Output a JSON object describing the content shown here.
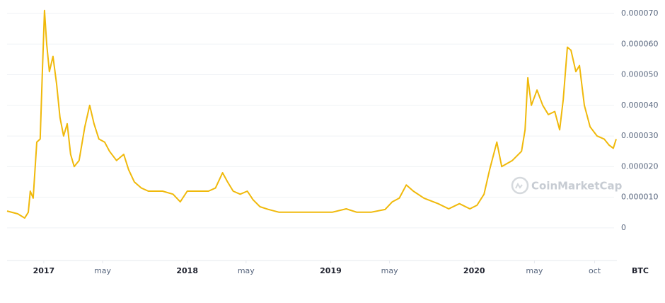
{
  "chart_data": {
    "type": "line",
    "color": "#f0b90b",
    "unit_label": "BTC",
    "watermark": "CoinMarketCap",
    "grid": true,
    "xlim": [
      2016.744,
      2020.995
    ],
    "ylim": [
      -1.02e-05,
      7.44e-05
    ],
    "xticks": [
      {
        "value": 2017,
        "label": "2017"
      },
      {
        "value": 2017.41,
        "label": "may"
      },
      {
        "value": 2018,
        "label": "2018"
      },
      {
        "value": 2018.41,
        "label": "may"
      },
      {
        "value": 2019,
        "label": "2019"
      },
      {
        "value": 2019.41,
        "label": "may"
      },
      {
        "value": 2020,
        "label": "2020"
      },
      {
        "value": 2020.42,
        "label": "may"
      },
      {
        "value": 2020.84,
        "label": "oct"
      }
    ],
    "yticks": [
      0,
      {
        "value": 1e-05,
        "label": "0.000010"
      },
      {
        "value": 2e-05,
        "label": "0.000020"
      },
      {
        "value": 3e-05,
        "label": "0.000030"
      },
      {
        "value": 4e-05,
        "label": "0.000040"
      },
      {
        "value": 5e-05,
        "label": "0.000050"
      },
      {
        "value": 6e-05,
        "label": "0.000060"
      },
      {
        "value": 7e-05,
        "label": "0.000070"
      }
    ],
    "x": [
      2016.744,
      2016.818,
      2016.867,
      2016.892,
      2016.906,
      2016.926,
      2016.951,
      2016.975,
      2016.99,
      2017.005,
      2017.02,
      2017.039,
      2017.064,
      2017.089,
      2017.113,
      2017.138,
      2017.163,
      2017.187,
      2017.212,
      2017.246,
      2017.286,
      2017.32,
      2017.35,
      2017.384,
      2017.424,
      2017.458,
      2017.507,
      2017.557,
      2017.591,
      2017.631,
      2017.68,
      2017.729,
      2017.828,
      2017.901,
      2017.951,
      2018.0,
      2018.074,
      2018.148,
      2018.197,
      2018.246,
      2018.281,
      2018.32,
      2018.369,
      2018.419,
      2018.458,
      2018.507,
      2018.567,
      2018.64,
      2018.764,
      2018.887,
      2019.01,
      2019.108,
      2019.182,
      2019.281,
      2019.379,
      2019.429,
      2019.478,
      2019.527,
      2019.576,
      2019.65,
      2019.749,
      2019.823,
      2019.897,
      2019.97,
      2020.02,
      2020.069,
      2020.108,
      2020.158,
      2020.192,
      2020.266,
      2020.33,
      2020.355,
      2020.374,
      2020.399,
      2020.438,
      2020.478,
      2020.517,
      2020.562,
      2020.596,
      2020.621,
      2020.65,
      2020.675,
      2020.709,
      2020.734,
      2020.768,
      2020.808,
      2020.857,
      2020.906,
      2020.941,
      2020.97,
      2020.99
    ],
    "values": [
      5.5e-06,
      4.6e-06,
      3.2e-06,
      5.1e-06,
      1.2e-05,
      9.7e-06,
      2.8e-05,
      2.9e-05,
      5.1e-05,
      7.1e-05,
      6e-05,
      5.1e-05,
      5.6e-05,
      4.7e-05,
      3.6e-05,
      3e-05,
      3.4e-05,
      2.4e-05,
      2e-05,
      2.2e-05,
      3.3e-05,
      4e-05,
      3.4e-05,
      2.9e-05,
      2.8e-05,
      2.5e-05,
      2.2e-05,
      2.4e-05,
      1.9e-05,
      1.5e-05,
      1.3e-05,
      1.2e-05,
      1.2e-05,
      1.1e-05,
      8.5e-06,
      1.2e-05,
      1.2e-05,
      1.2e-05,
      1.3e-05,
      1.8e-05,
      1.5e-05,
      1.2e-05,
      1.1e-05,
      1.2e-05,
      9.2e-06,
      6.9e-06,
      6e-06,
      5.1e-06,
      5.1e-06,
      5.1e-06,
      5.1e-06,
      6.2e-06,
      5.1e-06,
      5.1e-06,
      6e-06,
      8.5e-06,
      9.7e-06,
      1.4e-05,
      1.2e-05,
      9.7e-06,
      7.9e-06,
      6.2e-06,
      7.9e-06,
      6.2e-06,
      7.4e-06,
      1.1e-05,
      1.9e-05,
      2.8e-05,
      2e-05,
      2.2e-05,
      2.5e-05,
      3.2e-05,
      4.9e-05,
      4e-05,
      4.5e-05,
      4e-05,
      3.7e-05,
      3.8e-05,
      3.2e-05,
      4.2e-05,
      5.9e-05,
      5.8e-05,
      5.1e-05,
      5.3e-05,
      4e-05,
      3.3e-05,
      3e-05,
      2.9e-05,
      2.7e-05,
      2.6e-05,
      2.9e-05
    ]
  }
}
